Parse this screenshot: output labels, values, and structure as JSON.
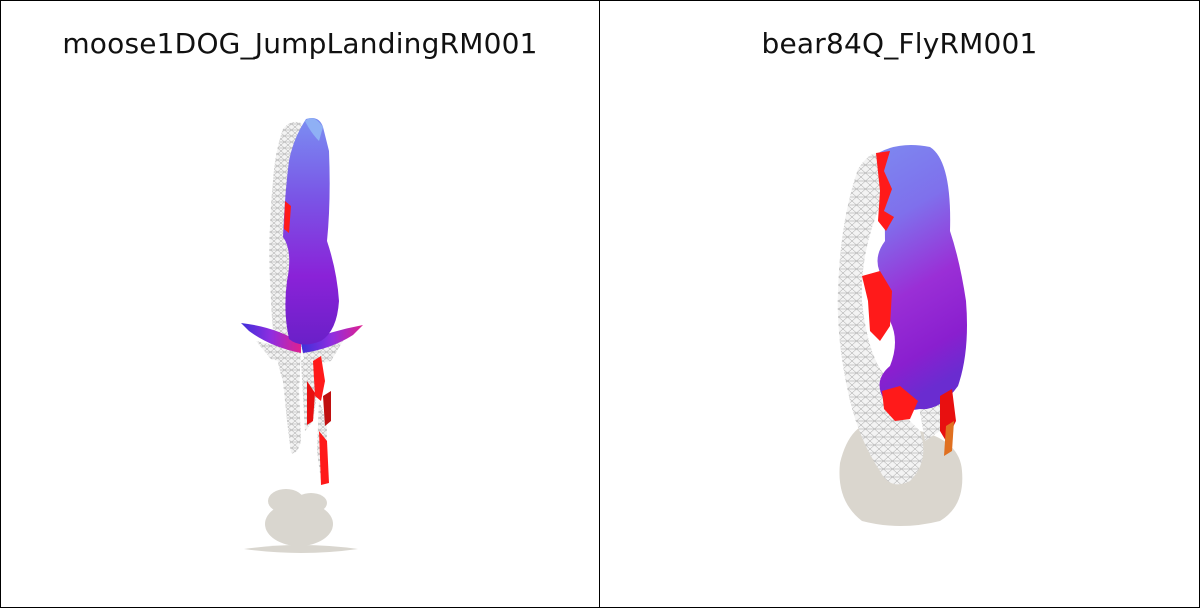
{
  "panels": [
    {
      "title": "moose1DOG_JumpLandingRM001"
    },
    {
      "title": "bear84Q_FlyRM001"
    }
  ],
  "colors": {
    "ground_shadow": "#d9d6cf",
    "mesh_white": "#f2f2f2",
    "mesh_line": "#9a9a9a",
    "surface_blue": "#7f86f0",
    "surface_purple": "#8a2be2",
    "surface_magenta": "#c03ad0",
    "error_red": "#ff1a1a",
    "error_orange": "#e07020"
  }
}
